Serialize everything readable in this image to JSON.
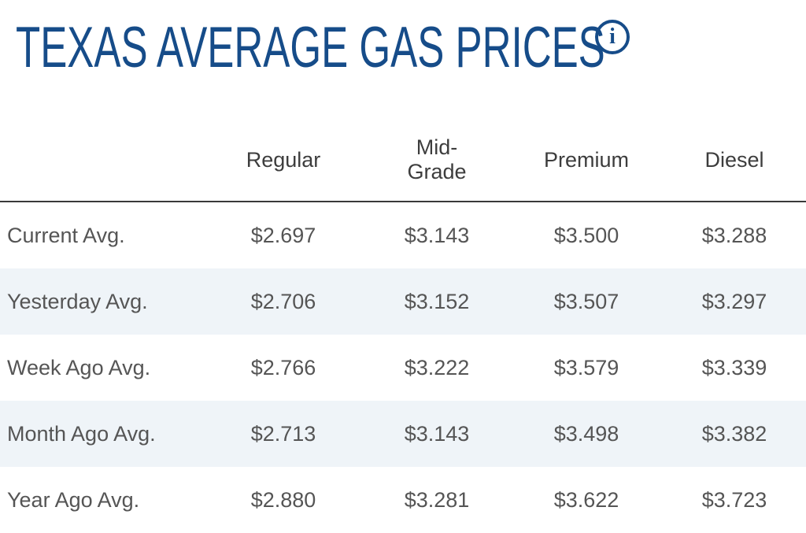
{
  "title": "TEXAS AVERAGE GAS PRICES",
  "info_icon_glyph": "i",
  "colors": {
    "title": "#164c89",
    "alt_row": "#eff4f8",
    "text": "#555555"
  },
  "table": {
    "headers": [
      "",
      "Regular",
      "Mid-\nGrade",
      "Premium",
      "Diesel"
    ],
    "rows": [
      {
        "label": "Current Avg.",
        "values": [
          "$2.697",
          "$3.143",
          "$3.500",
          "$3.288"
        ]
      },
      {
        "label": "Yesterday Avg.",
        "values": [
          "$2.706",
          "$3.152",
          "$3.507",
          "$3.297"
        ]
      },
      {
        "label": "Week Ago Avg.",
        "values": [
          "$2.766",
          "$3.222",
          "$3.579",
          "$3.339"
        ]
      },
      {
        "label": "Month Ago Avg.",
        "values": [
          "$2.713",
          "$3.143",
          "$3.498",
          "$3.382"
        ]
      },
      {
        "label": "Year Ago Avg.",
        "values": [
          "$2.880",
          "$3.281",
          "$3.622",
          "$3.723"
        ]
      }
    ]
  }
}
